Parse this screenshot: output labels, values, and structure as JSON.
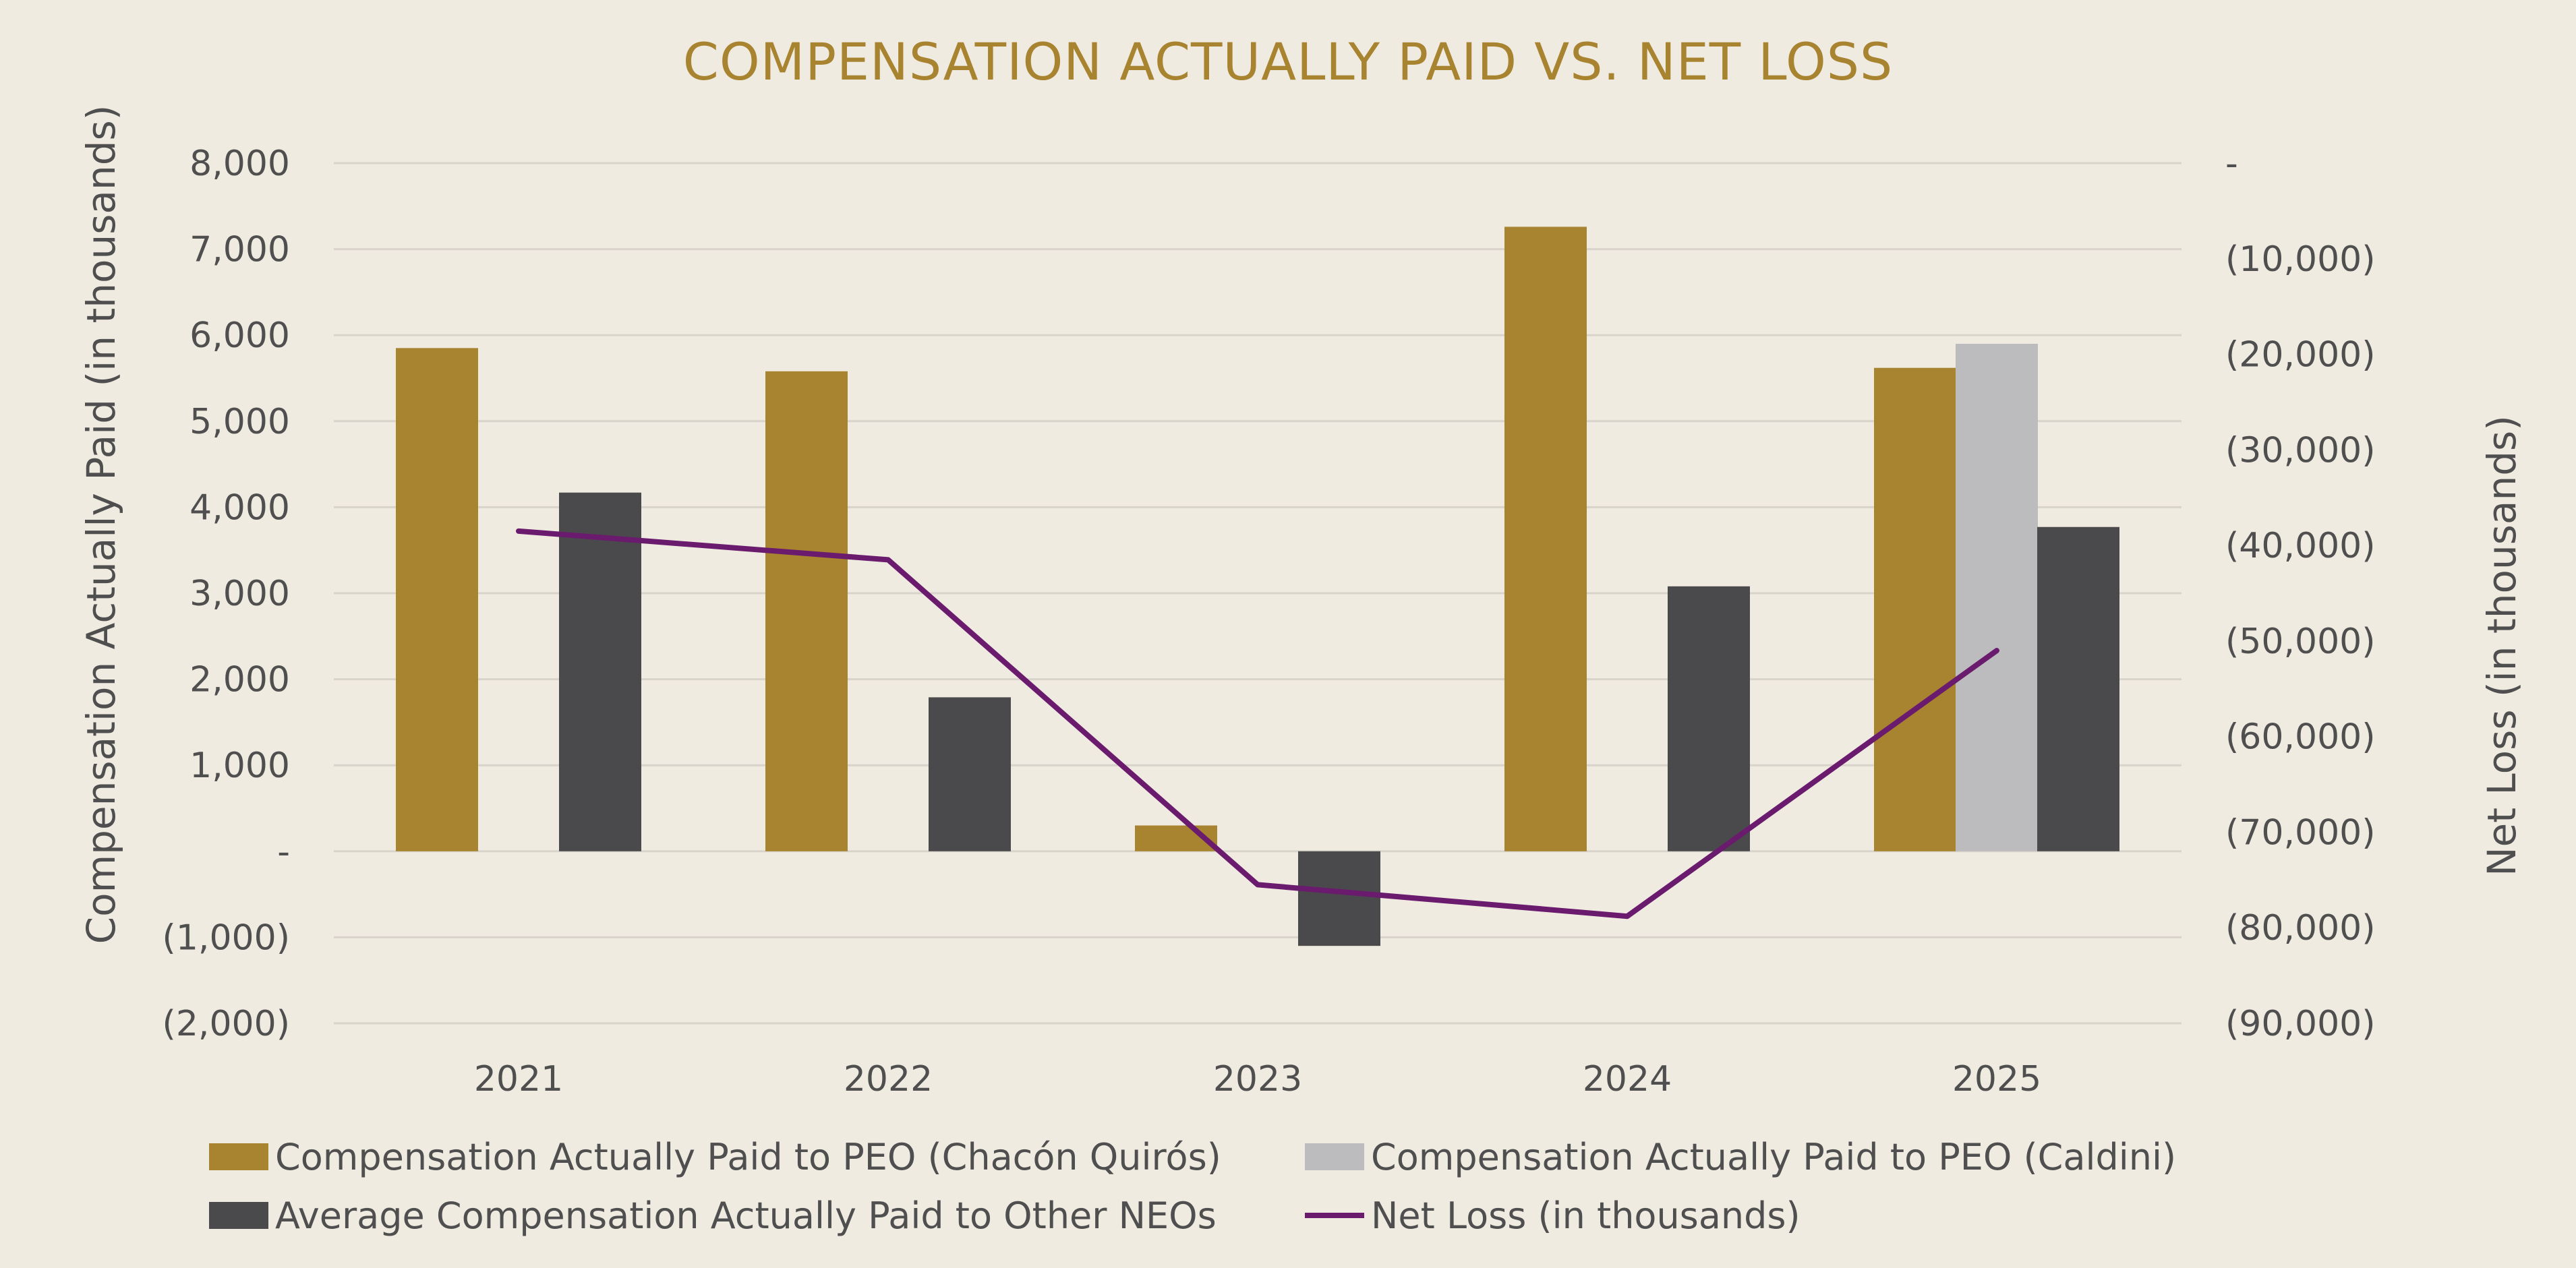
{
  "chart_data": {
    "type": "bar",
    "title": "COMPENSATION ACTUALLY PAID VS. NET LOSS",
    "categories": [
      "2021",
      "2022",
      "2023",
      "2024",
      "2025"
    ],
    "ylabel": "Compensation Actually Paid (in thousands)",
    "ylabel_right": "Net Loss (in thousands)",
    "ylim": [
      -2000,
      8000
    ],
    "ylim_right": [
      -90000,
      0
    ],
    "yticks": [
      8000,
      7000,
      6000,
      5000,
      4000,
      3000,
      2000,
      1000,
      0,
      -1000,
      -2000
    ],
    "ytick_labels": [
      "8,000",
      "7,000",
      "6,000",
      "5,000",
      "4,000",
      "3,000",
      "2,000",
      "1,000",
      "-",
      "(1,000)",
      "(2,000)"
    ],
    "yticks_right": [
      0,
      -10000,
      -20000,
      -30000,
      -40000,
      -50000,
      -60000,
      -70000,
      -80000,
      -90000
    ],
    "ytick_right_labels": [
      "-",
      "(10,000)",
      "(20,000)",
      "(30,000)",
      "(40,000)",
      "(50,000)",
      "(60,000)",
      "(70,000)",
      "(80,000)",
      "(90,000)"
    ],
    "grid": true,
    "legend_position": "bottom",
    "series": [
      {
        "name": "Compensation Actually Paid to PEO (Chacón Quirós)",
        "type": "bar",
        "axis": "left",
        "color": "#a88330",
        "values": [
          5850,
          5580,
          300,
          7260,
          5620
        ]
      },
      {
        "name": "Compensation Actually Paid to PEO (Caldini)",
        "type": "bar",
        "axis": "left",
        "color": "#bcbcbe",
        "values": [
          null,
          null,
          null,
          null,
          5900
        ]
      },
      {
        "name": "Average Compensation Actually Paid to Other NEOs",
        "type": "bar",
        "axis": "left",
        "color": "#4a4a4c",
        "values": [
          4170,
          1790,
          -1100,
          3080,
          3770
        ]
      },
      {
        "name": "Net Loss (in thousands)",
        "type": "line",
        "axis": "right",
        "color": "#6a1b6e",
        "values": [
          -38500,
          -41500,
          -75500,
          -78800,
          -51000
        ]
      }
    ]
  }
}
